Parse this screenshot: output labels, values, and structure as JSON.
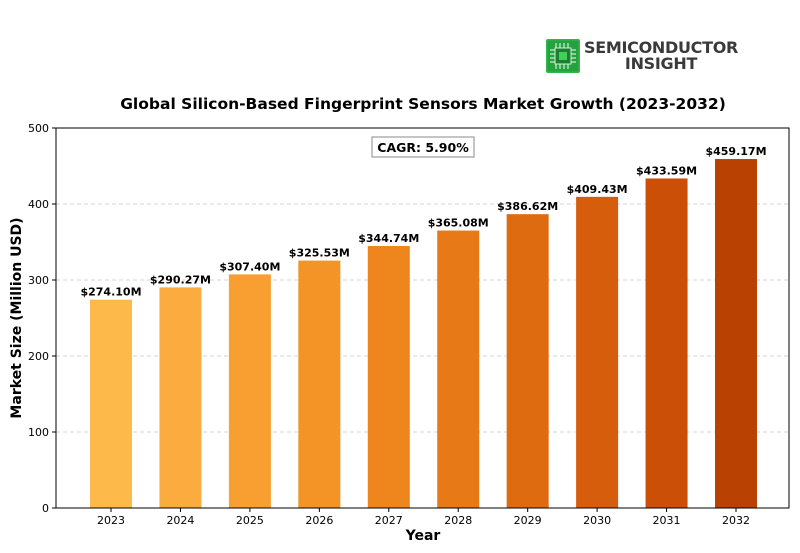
{
  "logo": {
    "line1": "SEMICONDUCTOR",
    "line2": "INSIGHT",
    "icon": "chip-icon",
    "icon_color": "#2fb84a"
  },
  "chart_data": {
    "type": "bar",
    "title": "Global Silicon-Based Fingerprint Sensors Market Growth (2023-2032)",
    "xlabel": "Year",
    "ylabel": "Market Size (Million USD)",
    "categories": [
      "2023",
      "2024",
      "2025",
      "2026",
      "2027",
      "2028",
      "2029",
      "2030",
      "2031",
      "2032"
    ],
    "values": [
      274.1,
      290.27,
      307.4,
      325.53,
      344.74,
      365.08,
      386.62,
      409.43,
      433.59,
      459.17
    ],
    "value_labels": [
      "$274.10M",
      "$290.27M",
      "$307.40M",
      "$325.53M",
      "$344.74M",
      "$365.08M",
      "$386.62M",
      "$409.43M",
      "$433.59M",
      "$459.17M"
    ],
    "bar_colors": [
      "#fdb94a",
      "#fcac3e",
      "#f99f32",
      "#f49326",
      "#ee861d",
      "#e77916",
      "#df6b10",
      "#d65d0b",
      "#cc4f07",
      "#b94203"
    ],
    "ylim": [
      0,
      500
    ],
    "yticks": [
      0,
      100,
      200,
      300,
      400,
      500
    ],
    "annotation": "CAGR: 5.90%",
    "grid": "horizontal-dashed",
    "legend": "none"
  }
}
